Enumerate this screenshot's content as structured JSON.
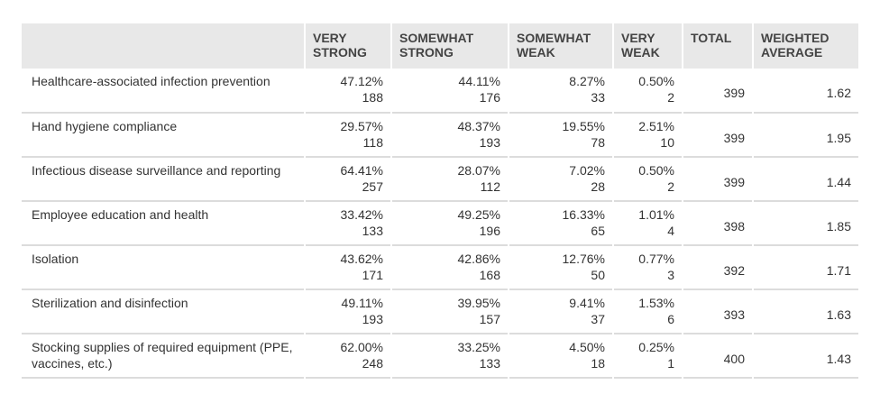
{
  "chart_data": {
    "type": "table",
    "columns": [
      "",
      "VERY STRONG",
      "SOMEWHAT STRONG",
      "SOMEWHAT WEAK",
      "VERY WEAK",
      "TOTAL",
      "WEIGHTED AVERAGE"
    ],
    "rows": [
      {
        "label": "Healthcare-associated infection prevention",
        "cells": [
          {
            "pct": "47.12%",
            "n": "188"
          },
          {
            "pct": "44.11%",
            "n": "176"
          },
          {
            "pct": "8.27%",
            "n": "33"
          },
          {
            "pct": "0.50%",
            "n": "2"
          }
        ],
        "total": "399",
        "wavg": "1.62"
      },
      {
        "label": "Hand hygiene compliance",
        "cells": [
          {
            "pct": "29.57%",
            "n": "118"
          },
          {
            "pct": "48.37%",
            "n": "193"
          },
          {
            "pct": "19.55%",
            "n": "78"
          },
          {
            "pct": "2.51%",
            "n": "10"
          }
        ],
        "total": "399",
        "wavg": "1.95"
      },
      {
        "label": "Infectious disease surveillance and reporting",
        "cells": [
          {
            "pct": "64.41%",
            "n": "257"
          },
          {
            "pct": "28.07%",
            "n": "112"
          },
          {
            "pct": "7.02%",
            "n": "28"
          },
          {
            "pct": "0.50%",
            "n": "2"
          }
        ],
        "total": "399",
        "wavg": "1.44"
      },
      {
        "label": "Employee education and health",
        "cells": [
          {
            "pct": "33.42%",
            "n": "133"
          },
          {
            "pct": "49.25%",
            "n": "196"
          },
          {
            "pct": "16.33%",
            "n": "65"
          },
          {
            "pct": "1.01%",
            "n": "4"
          }
        ],
        "total": "398",
        "wavg": "1.85"
      },
      {
        "label": "Isolation",
        "cells": [
          {
            "pct": "43.62%",
            "n": "171"
          },
          {
            "pct": "42.86%",
            "n": "168"
          },
          {
            "pct": "12.76%",
            "n": "50"
          },
          {
            "pct": "0.77%",
            "n": "3"
          }
        ],
        "total": "392",
        "wavg": "1.71"
      },
      {
        "label": "Sterilization and disinfection",
        "cells": [
          {
            "pct": "49.11%",
            "n": "193"
          },
          {
            "pct": "39.95%",
            "n": "157"
          },
          {
            "pct": "9.41%",
            "n": "37"
          },
          {
            "pct": "1.53%",
            "n": "6"
          }
        ],
        "total": "393",
        "wavg": "1.63"
      },
      {
        "label": "Stocking supplies of required equipment (PPE, vaccines, etc.)",
        "cells": [
          {
            "pct": "62.00%",
            "n": "248"
          },
          {
            "pct": "33.25%",
            "n": "133"
          },
          {
            "pct": "4.50%",
            "n": "18"
          },
          {
            "pct": "0.25%",
            "n": "1"
          }
        ],
        "total": "400",
        "wavg": "1.43"
      }
    ]
  }
}
